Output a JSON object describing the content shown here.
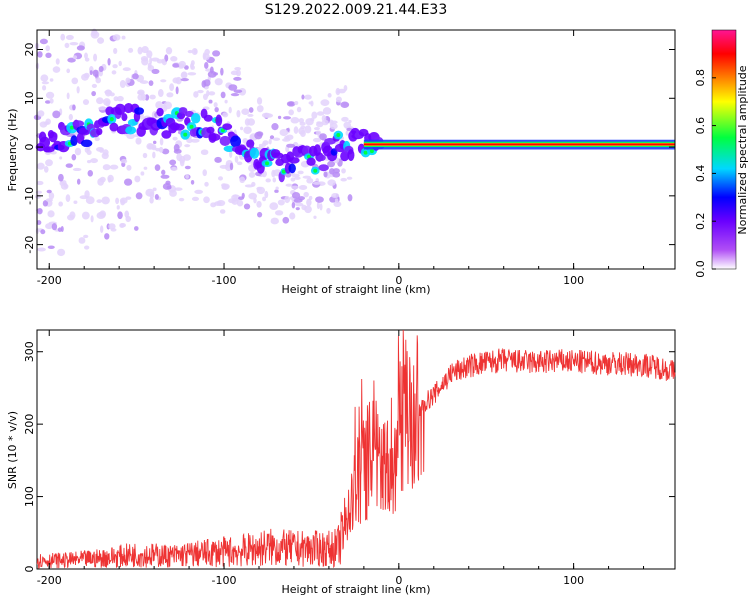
{
  "title": "S129.2022.009.21.44.E33",
  "chart_data": [
    {
      "type": "heatmap",
      "xlabel": "Height of straight line (km)",
      "ylabel": "Frequency (Hz)",
      "xlim": [
        -207,
        158
      ],
      "ylim": [
        -25,
        24
      ],
      "xticks": [
        -200,
        -100,
        0,
        100
      ],
      "yticks": [
        20,
        10,
        0,
        -10,
        -20
      ],
      "colorbar": {
        "label": "Normalized spectral amplitude",
        "ticks": [
          "0.0",
          "0.2",
          "0.4",
          "0.6",
          "0.8"
        ],
        "range": [
          0.0,
          1.0
        ],
        "colors": [
          "#ffffff",
          "#b04ff5",
          "#6a00ff",
          "#0000ff",
          "#00d8ff",
          "#00ff40",
          "#ffff00",
          "#ff8000",
          "#ff0000",
          "#ff1493"
        ]
      },
      "ridge": [
        {
          "x": -205,
          "y": 1
        },
        {
          "x": -180,
          "y": 3
        },
        {
          "x": -160,
          "y": 6
        },
        {
          "x": -140,
          "y": 5
        },
        {
          "x": -120,
          "y": 5
        },
        {
          "x": -105,
          "y": 4
        },
        {
          "x": -95,
          "y": 1
        },
        {
          "x": -80,
          "y": -2
        },
        {
          "x": -68,
          "y": -4
        },
        {
          "x": -55,
          "y": -1
        },
        {
          "x": -45,
          "y": -3
        },
        {
          "x": -35,
          "y": 0
        },
        {
          "x": -25,
          "y": 1
        },
        {
          "x": -15,
          "y": 0
        },
        {
          "x": 0,
          "y": 2
        },
        {
          "x": 20,
          "y": 0.5
        },
        {
          "x": 80,
          "y": 0.5
        },
        {
          "x": 90,
          "y": 1.5
        },
        {
          "x": 120,
          "y": 0.5
        },
        {
          "x": 158,
          "y": 0.5
        }
      ]
    },
    {
      "type": "line",
      "xlabel": "Height of straight line (km)",
      "ylabel": "SNR (10 * v/v)",
      "xlim": [
        -207,
        158
      ],
      "ylim": [
        0,
        330
      ],
      "xticks": [
        -200,
        -100,
        0,
        100
      ],
      "yticks": [
        0,
        100,
        200,
        300
      ],
      "color": "#ee3333",
      "series": [
        {
          "x": [
            -207,
            -190,
            -170,
            -150,
            -130,
            -110,
            -90,
            -75,
            -60,
            -50,
            -40,
            -35,
            -30,
            -25,
            -20,
            -15,
            -10,
            -5,
            0,
            5,
            10,
            15,
            20,
            25,
            30,
            40,
            50,
            60,
            70,
            80,
            90,
            100,
            110,
            120,
            130,
            140,
            150,
            158
          ],
          "y": [
            12,
            12,
            15,
            20,
            18,
            22,
            25,
            30,
            28,
            28,
            28,
            30,
            60,
            110,
            140,
            160,
            145,
            150,
            190,
            210,
            215,
            230,
            240,
            255,
            270,
            280,
            285,
            288,
            286,
            285,
            287,
            286,
            285,
            284,
            283,
            282,
            278,
            272
          ]
        }
      ]
    }
  ]
}
